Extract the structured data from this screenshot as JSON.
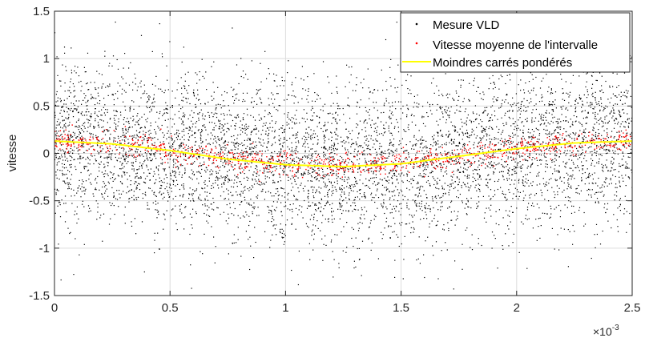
{
  "chart_data": {
    "type": "scatter",
    "ylabel": "vitesse",
    "xlabel": "",
    "x_exponent_label": "×10",
    "x_exponent": "-3",
    "xlim": [
      0,
      0.0025
    ],
    "ylim": [
      -1.5,
      1.5
    ],
    "x_ticks": [
      0,
      0.0005,
      0.001,
      0.0015,
      0.002,
      0.0025
    ],
    "x_tick_labels": [
      "0",
      "0.5",
      "1",
      "1.5",
      "2",
      "2.5"
    ],
    "y_ticks": [
      -1.5,
      -1,
      -0.5,
      0,
      0.5,
      1,
      1.5
    ],
    "y_tick_labels": [
      "-1.5",
      "-1",
      "-0.5",
      "0",
      "0.5",
      "1",
      "1.5"
    ],
    "grid": true,
    "legend_position": "top-right",
    "series": [
      {
        "name": "Mesure VLD",
        "kind": "scatter",
        "color": "#000000",
        "approx_count": 6000,
        "note_values": "raw measurements scattered around the fitted curve with spread about ±1.3"
      },
      {
        "name": "Vitesse moyenne de l'intervalle",
        "kind": "scatter",
        "color": "#ff0000",
        "approx_count": 900,
        "note_values": "interval means close to the fitted curve (spread about ±0.1)"
      },
      {
        "name": "Moindres carrés pondérés",
        "kind": "line",
        "color": "#ffff00",
        "x": [
          0,
          0.00025,
          0.0005,
          0.00075,
          0.001,
          0.00125,
          0.0015,
          0.00175,
          0.002,
          0.00225,
          0.0025
        ],
        "y": [
          0.13,
          0.1,
          0.03,
          -0.06,
          -0.12,
          -0.14,
          -0.11,
          -0.03,
          0.05,
          0.11,
          0.13
        ]
      }
    ]
  }
}
